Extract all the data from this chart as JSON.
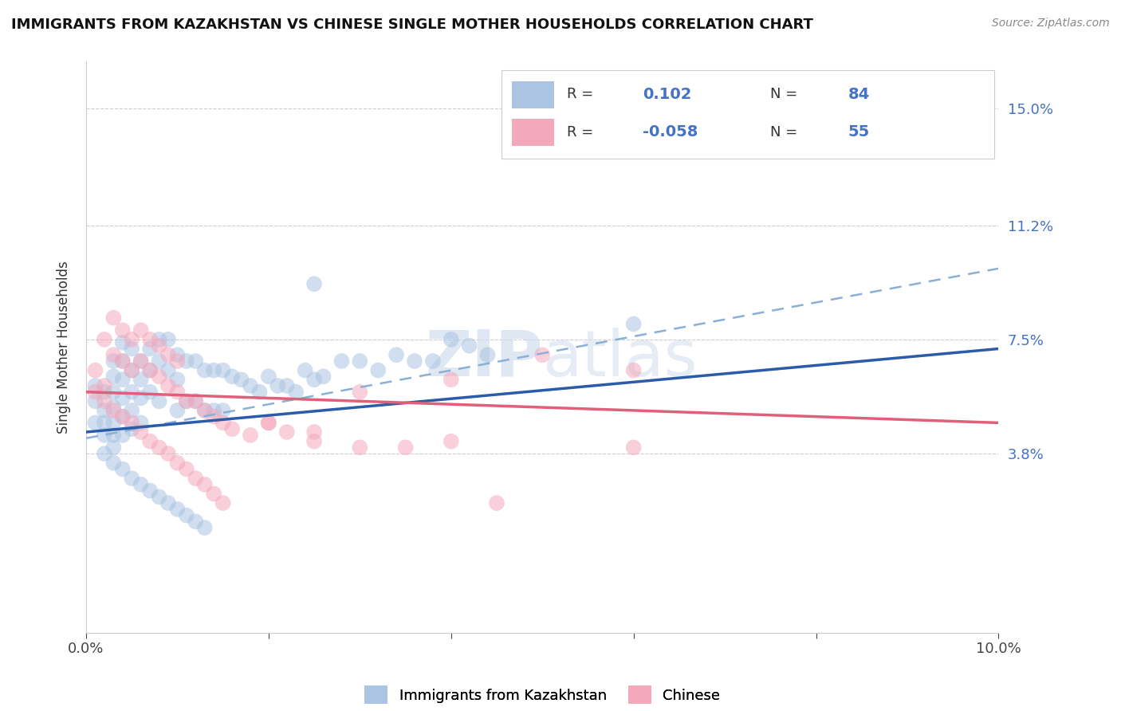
{
  "title": "IMMIGRANTS FROM KAZAKHSTAN VS CHINESE SINGLE MOTHER HOUSEHOLDS CORRELATION CHART",
  "source": "Source: ZipAtlas.com",
  "ylabel": "Single Mother Households",
  "xlim": [
    0.0,
    0.1
  ],
  "ylim": [
    -0.02,
    0.165
  ],
  "ytick_positions": [
    0.038,
    0.075,
    0.112,
    0.15
  ],
  "ytick_labels": [
    "3.8%",
    "7.5%",
    "11.2%",
    "15.0%"
  ],
  "color_kaz": "#aac4e2",
  "color_chinese": "#f4a8bc",
  "color_kaz_line": "#2a5caa",
  "color_chinese_line": "#e0607a",
  "color_dashed": "#8ab0d8",
  "watermark": "ZIPatlas",
  "kaz_trendline": [
    0.045,
    0.072
  ],
  "chi_trendline": [
    0.058,
    0.048
  ],
  "dashed_line": [
    0.043,
    0.098
  ],
  "kaz_x": [
    0.001,
    0.001,
    0.001,
    0.002,
    0.002,
    0.002,
    0.002,
    0.003,
    0.003,
    0.003,
    0.003,
    0.003,
    0.003,
    0.003,
    0.004,
    0.004,
    0.004,
    0.004,
    0.004,
    0.004,
    0.005,
    0.005,
    0.005,
    0.005,
    0.005,
    0.006,
    0.006,
    0.006,
    0.006,
    0.007,
    0.007,
    0.007,
    0.008,
    0.008,
    0.008,
    0.009,
    0.009,
    0.01,
    0.01,
    0.01,
    0.011,
    0.011,
    0.012,
    0.012,
    0.013,
    0.013,
    0.014,
    0.014,
    0.015,
    0.015,
    0.016,
    0.017,
    0.018,
    0.019,
    0.02,
    0.021,
    0.022,
    0.023,
    0.024,
    0.025,
    0.026,
    0.028,
    0.03,
    0.032,
    0.034,
    0.036,
    0.038,
    0.04,
    0.042,
    0.044,
    0.002,
    0.003,
    0.004,
    0.005,
    0.006,
    0.007,
    0.008,
    0.009,
    0.01,
    0.011,
    0.012,
    0.013,
    0.025,
    0.06
  ],
  "kaz_y": [
    0.06,
    0.055,
    0.048,
    0.058,
    0.052,
    0.048,
    0.044,
    0.068,
    0.063,
    0.058,
    0.053,
    0.048,
    0.044,
    0.04,
    0.074,
    0.068,
    0.062,
    0.056,
    0.05,
    0.044,
    0.072,
    0.065,
    0.058,
    0.052,
    0.046,
    0.068,
    0.062,
    0.056,
    0.048,
    0.072,
    0.065,
    0.058,
    0.075,
    0.068,
    0.055,
    0.075,
    0.065,
    0.07,
    0.062,
    0.052,
    0.068,
    0.055,
    0.068,
    0.055,
    0.065,
    0.052,
    0.065,
    0.052,
    0.065,
    0.052,
    0.063,
    0.062,
    0.06,
    0.058,
    0.063,
    0.06,
    0.06,
    0.058,
    0.065,
    0.062,
    0.063,
    0.068,
    0.068,
    0.065,
    0.07,
    0.068,
    0.068,
    0.075,
    0.073,
    0.07,
    0.038,
    0.035,
    0.033,
    0.03,
    0.028,
    0.026,
    0.024,
    0.022,
    0.02,
    0.018,
    0.016,
    0.014,
    0.093,
    0.08
  ],
  "chi_x": [
    0.001,
    0.002,
    0.002,
    0.003,
    0.003,
    0.004,
    0.004,
    0.005,
    0.005,
    0.006,
    0.006,
    0.007,
    0.007,
    0.008,
    0.008,
    0.009,
    0.009,
    0.01,
    0.01,
    0.011,
    0.012,
    0.013,
    0.014,
    0.015,
    0.016,
    0.018,
    0.02,
    0.022,
    0.025,
    0.03,
    0.001,
    0.002,
    0.003,
    0.004,
    0.005,
    0.006,
    0.007,
    0.008,
    0.009,
    0.01,
    0.011,
    0.012,
    0.013,
    0.014,
    0.015,
    0.02,
    0.025,
    0.03,
    0.035,
    0.04,
    0.045,
    0.05,
    0.06,
    0.04,
    0.06
  ],
  "chi_y": [
    0.065,
    0.06,
    0.075,
    0.07,
    0.082,
    0.068,
    0.078,
    0.065,
    0.075,
    0.068,
    0.078,
    0.065,
    0.075,
    0.063,
    0.073,
    0.06,
    0.07,
    0.058,
    0.068,
    0.055,
    0.055,
    0.052,
    0.05,
    0.048,
    0.046,
    0.044,
    0.048,
    0.045,
    0.042,
    0.058,
    0.058,
    0.055,
    0.052,
    0.05,
    0.048,
    0.045,
    0.042,
    0.04,
    0.038,
    0.035,
    0.033,
    0.03,
    0.028,
    0.025,
    0.022,
    0.048,
    0.045,
    0.04,
    0.04,
    0.062,
    0.022,
    0.07,
    0.065,
    0.042,
    0.04
  ]
}
